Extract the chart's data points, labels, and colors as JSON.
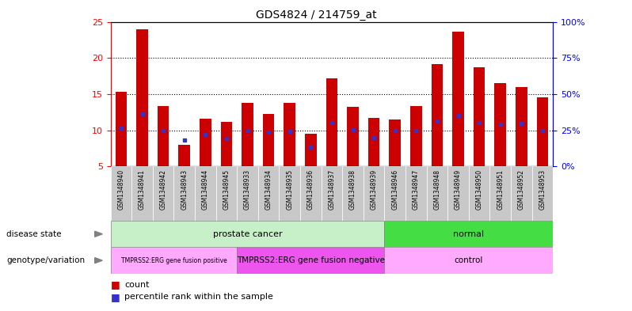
{
  "title": "GDS4824 / 214759_at",
  "samples": [
    "GSM1348940",
    "GSM1348941",
    "GSM1348942",
    "GSM1348943",
    "GSM1348944",
    "GSM1348945",
    "GSM1348933",
    "GSM1348934",
    "GSM1348935",
    "GSM1348936",
    "GSM1348937",
    "GSM1348938",
    "GSM1348939",
    "GSM1348946",
    "GSM1348947",
    "GSM1348948",
    "GSM1348949",
    "GSM1348950",
    "GSM1348951",
    "GSM1348952",
    "GSM1348953"
  ],
  "bar_heights": [
    15.3,
    24.0,
    13.3,
    8.0,
    11.6,
    11.2,
    13.8,
    12.3,
    13.8,
    9.5,
    17.2,
    13.2,
    11.7,
    11.5,
    13.3,
    19.1,
    23.6,
    18.7,
    16.5,
    16.0,
    14.5
  ],
  "blue_dots": [
    10.3,
    12.3,
    10.0,
    8.6,
    9.4,
    8.9,
    10.0,
    9.7,
    9.8,
    7.6,
    11.0,
    10.1,
    9.0,
    10.0,
    9.9,
    11.3,
    12.0,
    11.0,
    10.8,
    10.9,
    10.0
  ],
  "bar_color": "#cc0000",
  "dot_color": "#3333cc",
  "ylim_left": [
    5,
    25
  ],
  "ylim_right": [
    0,
    100
  ],
  "yticks_left": [
    5,
    10,
    15,
    20,
    25
  ],
  "ytick_labels_right": [
    "0%",
    "25%",
    "50%",
    "75%",
    "100%"
  ],
  "yticks_right": [
    0,
    25,
    50,
    75,
    100
  ],
  "hlines": [
    10,
    15,
    20
  ],
  "disease_state_groups": [
    {
      "label": "prostate cancer",
      "start": 0,
      "end": 13,
      "color": "#c8f0c8"
    },
    {
      "label": "normal",
      "start": 13,
      "end": 21,
      "color": "#44dd44"
    }
  ],
  "genotype_groups": [
    {
      "label": "TMPRSS2:ERG gene fusion positive",
      "start": 0,
      "end": 6,
      "color": "#ffaaff"
    },
    {
      "label": "TMPRSS2:ERG gene fusion negative",
      "start": 6,
      "end": 13,
      "color": "#ee55ee"
    },
    {
      "label": "control",
      "start": 13,
      "end": 21,
      "color": "#ffaaff"
    }
  ],
  "bar_width": 0.55,
  "n_samples": 21,
  "label_bg_color": "#c8c8c8",
  "n_fusion_positive": 6,
  "n_prostate": 13
}
